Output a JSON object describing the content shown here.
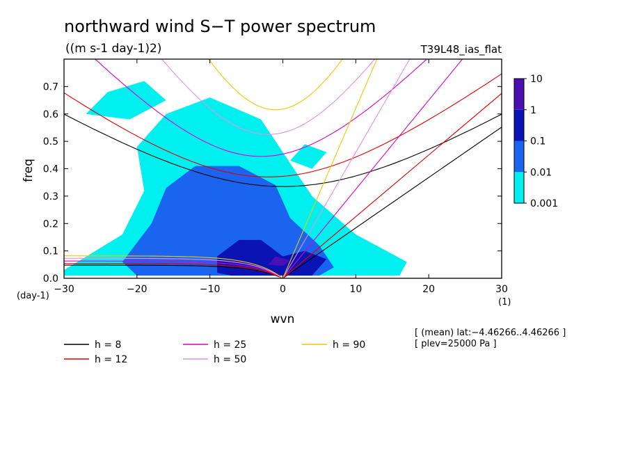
{
  "chart_data": {
    "type": "heatmap",
    "title": "northward wind S−T power spectrum",
    "subtitle": "((m s-1 day-1)2)",
    "run_label": "T39L48_ias_flat",
    "xlabel": "wvn",
    "ylabel": "freq",
    "x_unit": "(1)",
    "y_unit": "(day-1)",
    "xlim": [
      -30,
      30
    ],
    "ylim": [
      0,
      0.8
    ],
    "x_ticks": [
      -30,
      -20,
      -10,
      0,
      10,
      20,
      30
    ],
    "x_tick_labels": [
      "−30",
      "−20",
      "−10",
      "0",
      "10",
      "20",
      "30"
    ],
    "y_ticks": [
      0,
      0.1,
      0.2,
      0.3,
      0.4,
      0.5,
      0.6,
      0.7
    ],
    "y_tick_labels": [
      "0.0",
      "0.1",
      "0.2",
      "0.3",
      "0.4",
      "0.5",
      "0.6",
      "0.7"
    ],
    "colorbar": {
      "levels": [
        "0.001",
        "0.01",
        "0.1",
        "1",
        "10"
      ],
      "colors": [
        "#00f0f0",
        "#1a64f0",
        "#0a14b4",
        "#4b0fb4"
      ]
    },
    "power_regions": [
      {
        "level": 0,
        "shape": [
          [
            -30,
            0.03
          ],
          [
            -22,
            0.16
          ],
          [
            -19,
            0.32
          ],
          [
            -20,
            0.48
          ],
          [
            -16,
            0.6
          ],
          [
            -10,
            0.66
          ],
          [
            -3,
            0.58
          ],
          [
            0,
            0.46
          ],
          [
            4,
            0.3
          ],
          [
            10,
            0.16
          ],
          [
            17,
            0.06
          ],
          [
            16,
            0.01
          ],
          [
            -30,
            0.01
          ]
        ]
      },
      {
        "level": 0,
        "shape": [
          [
            -27,
            0.6
          ],
          [
            -24,
            0.68
          ],
          [
            -19,
            0.72
          ],
          [
            -16,
            0.65
          ],
          [
            -21,
            0.58
          ]
        ]
      },
      {
        "level": 0,
        "shape": [
          [
            1,
            0.43
          ],
          [
            3,
            0.49
          ],
          [
            6,
            0.46
          ],
          [
            4,
            0.4
          ]
        ]
      },
      {
        "level": 1,
        "shape": [
          [
            -22,
            0.06
          ],
          [
            -18,
            0.2
          ],
          [
            -16,
            0.33
          ],
          [
            -12,
            0.41
          ],
          [
            -6,
            0.41
          ],
          [
            -1,
            0.34
          ],
          [
            1,
            0.22
          ],
          [
            5,
            0.12
          ],
          [
            7,
            0.04
          ],
          [
            5,
            0.01
          ],
          [
            -20,
            0.01
          ]
        ]
      },
      {
        "level": 2,
        "shape": [
          [
            -9,
            0.02
          ],
          [
            -9,
            0.08
          ],
          [
            -6,
            0.14
          ],
          [
            -3,
            0.14
          ],
          [
            0,
            0.08
          ],
          [
            3,
            0.1
          ],
          [
            6,
            0.07
          ],
          [
            4,
            0.01
          ],
          [
            -7,
            0.01
          ]
        ]
      },
      {
        "level": 3,
        "shape": [
          [
            -2,
            0.05
          ],
          [
            -1,
            0.08
          ],
          [
            1,
            0.065
          ],
          [
            0,
            0.045
          ]
        ]
      }
    ],
    "dispersion_curves": [
      {
        "name": "h =  8",
        "color": "#000000",
        "ms_freq": 0.335,
        "ms_k": 0,
        "kelvin_slope": 0.0184,
        "mrg_omega": 0.335,
        "rossby_limit": 0.048
      },
      {
        "name": "h = 12",
        "color": "#e00000",
        "ms_freq": 0.37,
        "ms_k": -2,
        "kelvin_slope": 0.0225,
        "mrg_omega": 0.37,
        "rossby_limit": 0.054
      },
      {
        "name": "h = 25",
        "color": "#e000c8",
        "ms_freq": 0.445,
        "ms_k": -3,
        "kelvin_slope": 0.0325,
        "mrg_omega": 0.445,
        "rossby_limit": 0.063
      },
      {
        "name": "h = 50",
        "color": "#e090e8",
        "ms_freq": 0.525,
        "ms_k": -2,
        "kelvin_slope": 0.046,
        "mrg_omega": 0.525,
        "rossby_limit": 0.073
      },
      {
        "name": "h = 90",
        "color": "#f0c800",
        "ms_freq": 0.615,
        "ms_k": -1,
        "kelvin_slope": 0.062,
        "mrg_omega": 0.615,
        "rossby_limit": 0.082
      }
    ],
    "legend": {
      "placement": "bottom-left",
      "entries": [
        {
          "label": "h =  8",
          "color": "#000000"
        },
        {
          "label": "h = 12",
          "color": "#e00000"
        },
        {
          "label": "h = 25",
          "color": "#e000c8"
        },
        {
          "label": "h = 50",
          "color": "#e090e8"
        },
        {
          "label": "h = 90",
          "color": "#f0c800"
        }
      ]
    },
    "annotation": {
      "line1": "[ (mean) lat:−4.46266..4.46266 ]",
      "line2": "[ plev=25000 Pa ]"
    }
  }
}
